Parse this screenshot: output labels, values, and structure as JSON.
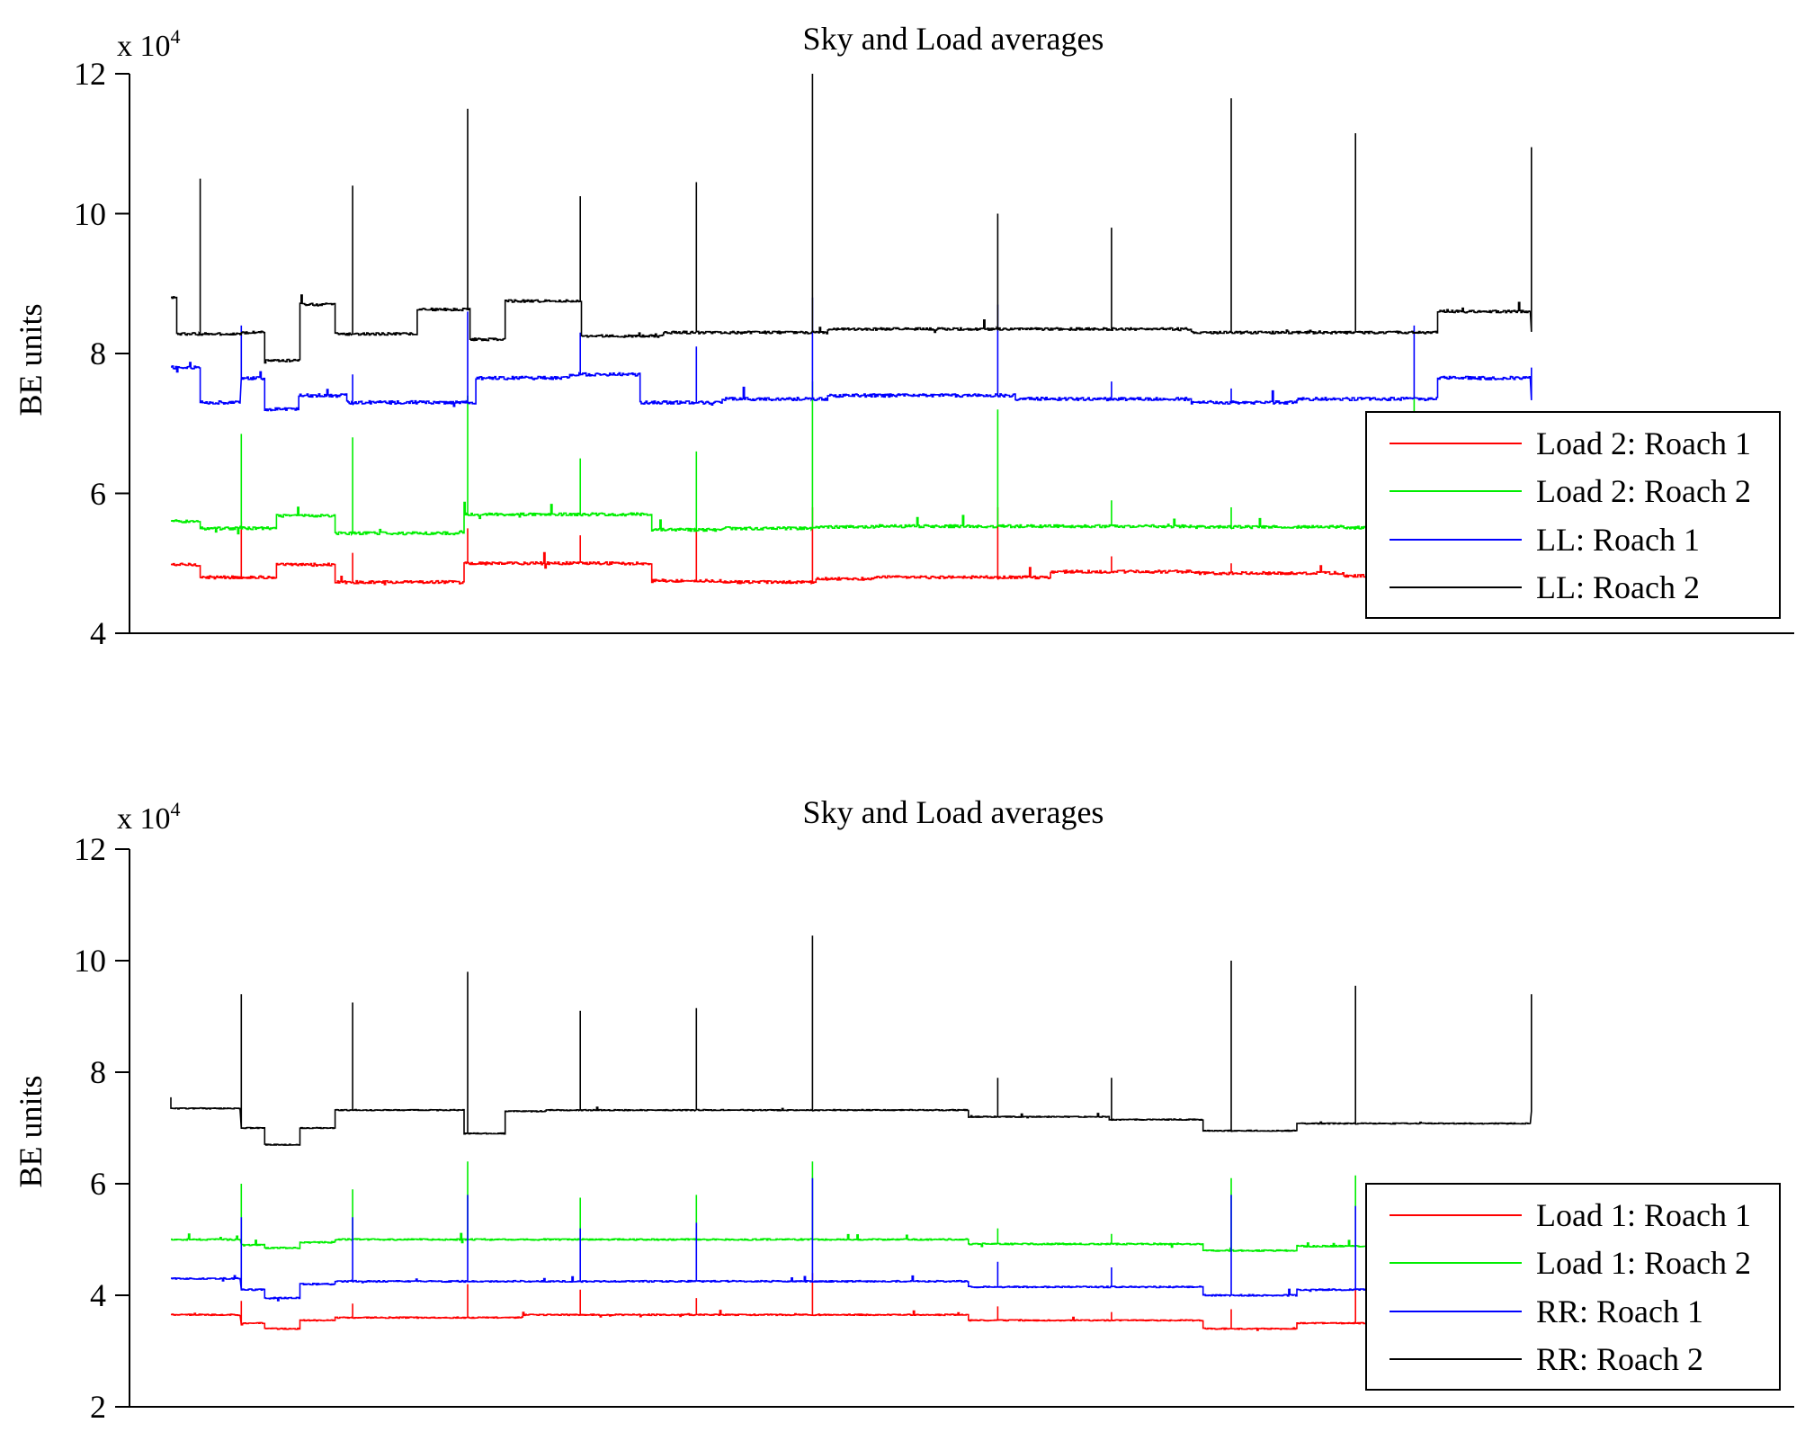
{
  "chart_data": [
    {
      "type": "line",
      "title": "Sky and Load averages",
      "xlabel": "",
      "ylabel": "BE units",
      "y_multiplier": "x 10",
      "y_multiplier_exp": "4",
      "ylim": [
        40000,
        120000
      ],
      "yticks": [
        40000,
        60000,
        80000,
        100000,
        120000
      ],
      "ytick_labels": [
        "4",
        "6",
        "8",
        "10",
        "12"
      ],
      "xlim": [
        0,
        1200
      ],
      "grid": false,
      "legend_position": "bottom-right",
      "series": [
        {
          "name": "Load 2: Roach 1",
          "color": "#ff0000",
          "base": 48500,
          "noise": 400,
          "segments": [
            [
              0,
              25,
              49800
            ],
            [
              25,
              90,
              48000
            ],
            [
              90,
              140,
              49800
            ],
            [
              140,
              245,
              47300
            ],
            [
              245,
              250,
              47200
            ],
            [
              250,
              340,
              50000
            ],
            [
              340,
              410,
              50000
            ],
            [
              410,
              470,
              47500
            ],
            [
              470,
              550,
              47300
            ],
            [
              550,
              600,
              47800
            ],
            [
              600,
              750,
              48000
            ],
            [
              750,
              870,
              48800
            ],
            [
              870,
              1000,
              48600
            ],
            [
              1000,
              1160,
              48200
            ]
          ],
          "spikes": [
            [
              60,
              56000
            ],
            [
              155,
              51500
            ],
            [
              253,
              55000
            ],
            [
              349,
              54000
            ],
            [
              448,
              55000
            ],
            [
              547,
              58000
            ],
            [
              705,
              58000
            ],
            [
              802,
              51000
            ],
            [
              904,
              50000
            ],
            [
              1060,
              53000
            ]
          ]
        },
        {
          "name": "Load 2: Roach 2",
          "color": "#00ee00",
          "base": 55000,
          "noise": 400,
          "segments": [
            [
              0,
              25,
              56000
            ],
            [
              25,
              90,
              55000
            ],
            [
              90,
              140,
              56800
            ],
            [
              140,
              245,
              54300
            ],
            [
              245,
              250,
              54500
            ],
            [
              250,
              340,
              57000
            ],
            [
              340,
              410,
              57000
            ],
            [
              410,
              470,
              54800
            ],
            [
              470,
              550,
              55000
            ],
            [
              550,
              600,
              55200
            ],
            [
              600,
              750,
              55300
            ],
            [
              750,
              870,
              55300
            ],
            [
              870,
              1000,
              55200
            ],
            [
              1000,
              1160,
              55100
            ]
          ],
          "spikes": [
            [
              60,
              68500
            ],
            [
              155,
              68000
            ],
            [
              253,
              74000
            ],
            [
              349,
              65000
            ],
            [
              448,
              66000
            ],
            [
              547,
              76000
            ],
            [
              705,
              72000
            ],
            [
              802,
              59000
            ],
            [
              904,
              58000
            ],
            [
              1060,
              74000
            ]
          ]
        },
        {
          "name": "LL: Roach 1",
          "color": "#0000ff",
          "base": 73500,
          "noise": 450,
          "segments": [
            [
              0,
              25,
              78000
            ],
            [
              25,
              60,
              73000
            ],
            [
              60,
              80,
              76500
            ],
            [
              80,
              110,
              72000
            ],
            [
              110,
              150,
              74000
            ],
            [
              150,
              260,
              73000
            ],
            [
              260,
              340,
              76500
            ],
            [
              340,
              400,
              77000
            ],
            [
              400,
              470,
              73000
            ],
            [
              470,
              560,
              73500
            ],
            [
              560,
              720,
              74000
            ],
            [
              720,
              870,
              73500
            ],
            [
              870,
              960,
              73000
            ],
            [
              960,
              1080,
              73500
            ],
            [
              1080,
              1160,
              76500
            ]
          ],
          "spikes": [
            [
              60,
              84000
            ],
            [
              155,
              77000
            ],
            [
              253,
              86000
            ],
            [
              349,
              83000
            ],
            [
              448,
              81000
            ],
            [
              547,
              88000
            ],
            [
              705,
              87000
            ],
            [
              802,
              76000
            ],
            [
              904,
              75000
            ],
            [
              1060,
              84000
            ],
            [
              1160,
              78000
            ]
          ]
        },
        {
          "name": "LL: Roach 2",
          "color": "#000000",
          "base": 83000,
          "noise": 350,
          "segments": [
            [
              0,
              5,
              88000
            ],
            [
              5,
              60,
              82800
            ],
            [
              60,
              80,
              83000
            ],
            [
              80,
              110,
              79000
            ],
            [
              110,
              140,
              87000
            ],
            [
              140,
              210,
              82800
            ],
            [
              210,
              255,
              86300
            ],
            [
              255,
              285,
              82000
            ],
            [
              285,
              350,
              87500
            ],
            [
              350,
              420,
              82500
            ],
            [
              420,
              560,
              83000
            ],
            [
              560,
              720,
              83500
            ],
            [
              720,
              870,
              83500
            ],
            [
              870,
              960,
              83000
            ],
            [
              960,
              1080,
              83000
            ],
            [
              1080,
              1160,
              86000
            ]
          ],
          "spikes": [
            [
              25,
              105000
            ],
            [
              155,
              104000
            ],
            [
              253,
              115000
            ],
            [
              349,
              102500
            ],
            [
              448,
              104500
            ],
            [
              547,
              120000
            ],
            [
              705,
              100000
            ],
            [
              802,
              98000
            ],
            [
              904,
              116500
            ],
            [
              1010,
              111500
            ],
            [
              1160,
              109500
            ]
          ]
        }
      ]
    },
    {
      "type": "line",
      "title": "Sky and Load averages",
      "xlabel": "",
      "ylabel": "BE units",
      "y_multiplier": "x 10",
      "y_multiplier_exp": "4",
      "ylim": [
        20000,
        120000
      ],
      "yticks": [
        20000,
        40000,
        60000,
        80000,
        100000,
        120000
      ],
      "ytick_labels": [
        "2",
        "4",
        "6",
        "8",
        "10",
        "12"
      ],
      "xlim": [
        0,
        1200
      ],
      "grid": false,
      "legend_position": "bottom-right",
      "series": [
        {
          "name": "Load 1: Roach 1",
          "color": "#ff0000",
          "base": 36000,
          "noise": 200,
          "segments": [
            [
              0,
              60,
              36500
            ],
            [
              60,
              80,
              35000
            ],
            [
              80,
              110,
              34000
            ],
            [
              110,
              140,
              35500
            ],
            [
              140,
              300,
              36000
            ],
            [
              300,
              680,
              36500
            ],
            [
              680,
              880,
              35500
            ],
            [
              880,
              960,
              34000
            ],
            [
              960,
              1160,
              35000
            ]
          ],
          "spikes": [
            [
              60,
              39000
            ],
            [
              155,
              38500
            ],
            [
              253,
              42000
            ],
            [
              349,
              41000
            ],
            [
              448,
              39500
            ],
            [
              547,
              44000
            ],
            [
              705,
              38000
            ],
            [
              802,
              37000
            ],
            [
              904,
              37500
            ],
            [
              1010,
              41500
            ]
          ]
        },
        {
          "name": "Load 1: Roach 2",
          "color": "#00ee00",
          "base": 49500,
          "noise": 250,
          "segments": [
            [
              0,
              60,
              50000
            ],
            [
              60,
              80,
              49000
            ],
            [
              80,
              110,
              48500
            ],
            [
              110,
              140,
              49500
            ],
            [
              140,
              400,
              50000
            ],
            [
              400,
              680,
              50000
            ],
            [
              680,
              880,
              49200
            ],
            [
              880,
              960,
              48000
            ],
            [
              960,
              1160,
              48800
            ]
          ],
          "spikes": [
            [
              60,
              60000
            ],
            [
              155,
              59000
            ],
            [
              253,
              64000
            ],
            [
              349,
              57500
            ],
            [
              448,
              58000
            ],
            [
              547,
              64000
            ],
            [
              705,
              52000
            ],
            [
              802,
              51000
            ],
            [
              904,
              61000
            ],
            [
              1010,
              61500
            ]
          ]
        },
        {
          "name": "RR: Roach 1",
          "color": "#0000ff",
          "base": 42500,
          "noise": 250,
          "segments": [
            [
              0,
              60,
              43000
            ],
            [
              60,
              80,
              41000
            ],
            [
              80,
              110,
              39500
            ],
            [
              110,
              140,
              42000
            ],
            [
              140,
              400,
              42500
            ],
            [
              400,
              680,
              42500
            ],
            [
              680,
              880,
              41500
            ],
            [
              880,
              960,
              40000
            ],
            [
              960,
              1160,
              41000
            ]
          ],
          "spikes": [
            [
              60,
              54000
            ],
            [
              155,
              54000
            ],
            [
              253,
              58000
            ],
            [
              349,
              52000
            ],
            [
              448,
              53000
            ],
            [
              547,
              61000
            ],
            [
              705,
              46000
            ],
            [
              802,
              45000
            ],
            [
              904,
              58000
            ],
            [
              1010,
              56000
            ]
          ]
        },
        {
          "name": "RR: Roach 2",
          "color": "#000000",
          "base": 73000,
          "noise": 180,
          "segments": [
            [
              0,
              60,
              73500
            ],
            [
              60,
              80,
              70000
            ],
            [
              80,
              110,
              67000
            ],
            [
              110,
              140,
              70000
            ],
            [
              140,
              250,
              73200
            ],
            [
              250,
              285,
              69000
            ],
            [
              285,
              320,
              73000
            ],
            [
              320,
              680,
              73200
            ],
            [
              680,
              800,
              72000
            ],
            [
              800,
              880,
              71500
            ],
            [
              880,
              960,
              69500
            ],
            [
              960,
              1160,
              70800
            ]
          ],
          "spikes": [
            [
              0,
              75500
            ],
            [
              60,
              94000
            ],
            [
              155,
              92500
            ],
            [
              253,
              98000
            ],
            [
              349,
              91000
            ],
            [
              448,
              91500
            ],
            [
              547,
              104500
            ],
            [
              705,
              79000
            ],
            [
              802,
              79000
            ],
            [
              904,
              100000
            ],
            [
              1010,
              95500
            ],
            [
              1160,
              94000
            ]
          ]
        }
      ]
    }
  ]
}
